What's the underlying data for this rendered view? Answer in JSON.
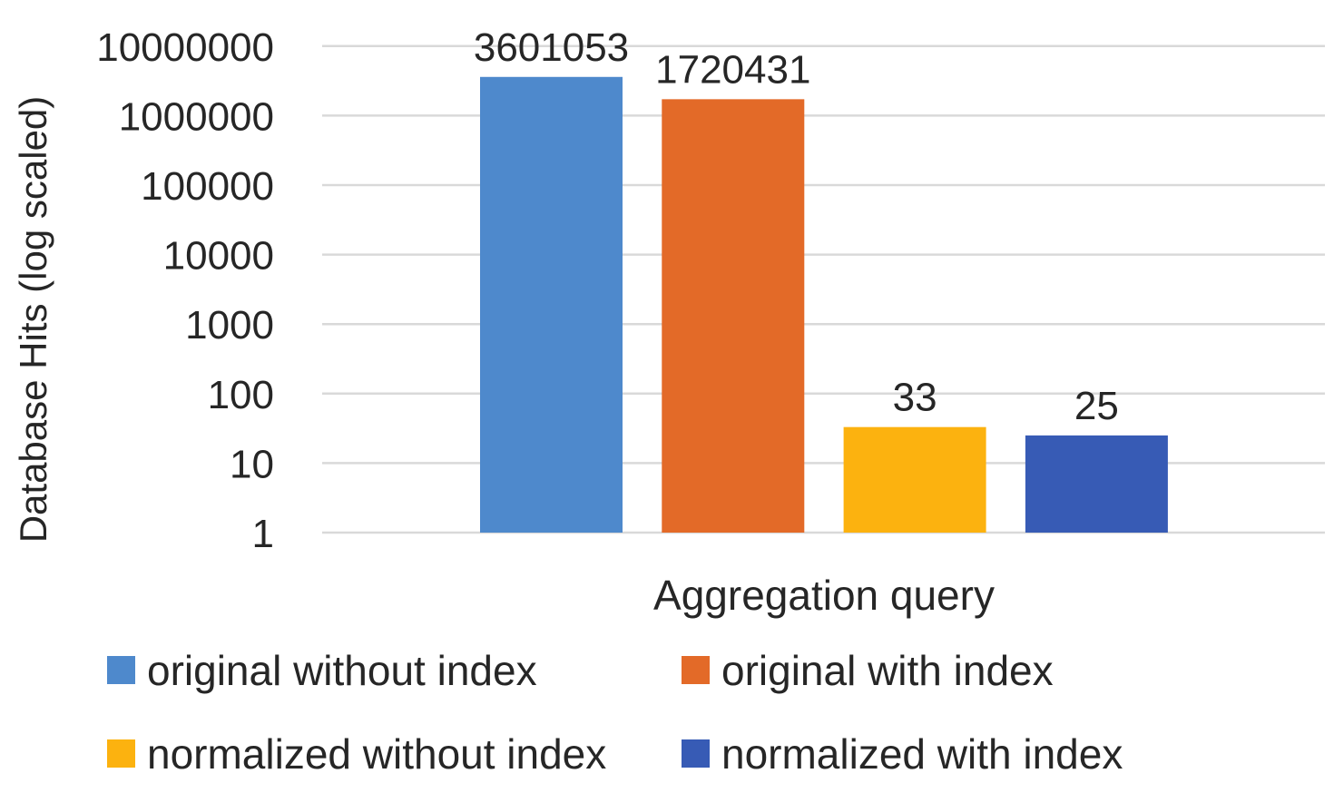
{
  "chart_data": {
    "type": "bar",
    "categories": [
      "Aggregation query"
    ],
    "xlabel": "Aggregation query",
    "ylabel": "Database Hits (log scaled)",
    "yscale": "log",
    "ylim": [
      1,
      10000000
    ],
    "yticks": [
      "1",
      "10",
      "100",
      "1000",
      "10000",
      "100000",
      "1000000",
      "10000000"
    ],
    "grid": true,
    "legend_position": "bottom",
    "series": [
      {
        "name": "original without index",
        "values": [
          3601053
        ],
        "label": "3601053",
        "color": "#4e89cc"
      },
      {
        "name": "original with index",
        "values": [
          1720431
        ],
        "label": "1720431",
        "color": "#e36a28"
      },
      {
        "name": "normalized without index",
        "values": [
          33
        ],
        "label": "33",
        "color": "#fcb20f"
      },
      {
        "name": "normalized with index",
        "values": [
          25
        ],
        "label": "25",
        "color": "#375bb5"
      }
    ]
  }
}
